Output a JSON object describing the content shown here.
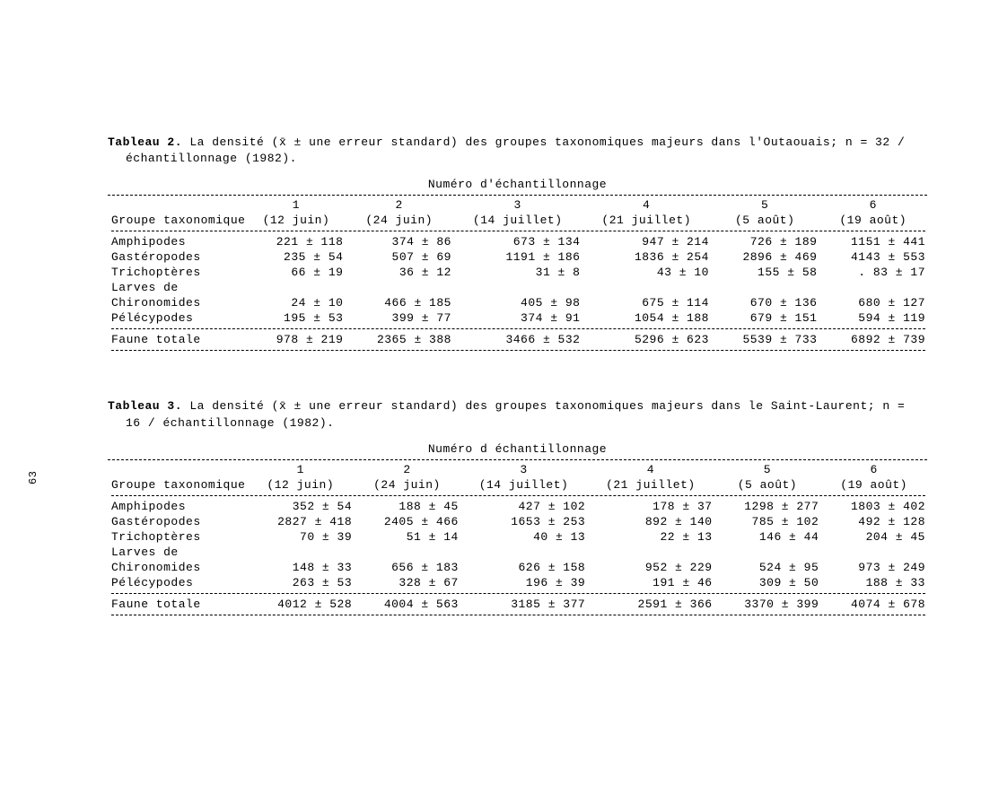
{
  "page_number": "63",
  "tables": [
    {
      "caption_prefix": "Tableau 2.",
      "caption_body": "La densité (x̄ ± une erreur standard) des groupes taxonomiques majeurs dans l'Outaouais; n = 32 / échantillonnage (1982).",
      "section_header": "Numéro d'échantillonnage",
      "col_numbers": [
        "",
        "1",
        "2",
        "3",
        "4",
        "5",
        "6"
      ],
      "col_dates": [
        "Groupe taxonomique",
        "(12 juin)",
        "(24 juin)",
        "(14 juillet)",
        "(21 juillet)",
        "(5 août)",
        "(19 août)"
      ],
      "rows": [
        {
          "label": "Amphipodes",
          "cells": [
            "221 ± 118",
            "374 ± 86",
            "673 ± 134",
            "947 ± 214",
            "726 ± 189",
            "1151 ± 441"
          ]
        },
        {
          "label": "Gastéropodes",
          "cells": [
            "235 ± 54",
            "507 ± 69",
            "1191 ± 186",
            "1836 ± 254",
            "2896 ± 469",
            "4143 ± 553"
          ]
        },
        {
          "label": "Trichoptères",
          "cells": [
            "66 ± 19",
            "36 ± 12",
            "31 ± 8",
            "43 ± 10",
            "155 ± 58",
            ". 83 ± 17"
          ]
        },
        {
          "label": "Larves de",
          "cells": [
            "",
            "",
            "",
            "",
            "",
            ""
          ]
        },
        {
          "label": "Chironomides",
          "cells": [
            "24 ± 10",
            "466 ± 185",
            "405 ± 98",
            "675 ± 114",
            "670 ± 136",
            "680 ± 127"
          ]
        },
        {
          "label": "Pélécypodes",
          "cells": [
            "195 ± 53",
            "399 ± 77",
            "374 ± 91",
            "1054 ± 188",
            "679 ± 151",
            "594 ± 119"
          ]
        }
      ],
      "total": {
        "label": "Faune totale",
        "cells": [
          "978 ± 219",
          "2365 ± 388",
          "3466 ± 532",
          "5296 ± 623",
          "5539 ± 733",
          "6892 ± 739"
        ]
      }
    },
    {
      "caption_prefix": "Tableau 3.",
      "caption_body": "La densité (x̄ ± une erreur standard) des groupes taxonomiques majeurs dans le Saint-Laurent; n = 16 / échantillonnage (1982).",
      "section_header": "Numéro d échantillonnage",
      "col_numbers": [
        "",
        "1",
        "2",
        "3",
        "4",
        "5",
        "6"
      ],
      "col_dates": [
        "Groupe taxonomique",
        "(12 juin)",
        "(24 juin)",
        "(14 juillet)",
        "(21 juillet)",
        "(5 août)",
        "(19 août)"
      ],
      "rows": [
        {
          "label": "Amphipodes",
          "cells": [
            "352 ± 54",
            "188 ± 45",
            "427 ± 102",
            "178 ± 37",
            "1298 ± 277",
            "1803 ± 402"
          ]
        },
        {
          "label": "Gastéropodes",
          "cells": [
            "2827 ± 418",
            "2405 ± 466",
            "1653 ± 253",
            "892 ± 140",
            "785 ± 102",
            "492 ± 128"
          ]
        },
        {
          "label": "Trichoptères",
          "cells": [
            "70 ± 39",
            "51 ± 14",
            "40 ± 13",
            "22 ± 13",
            "146 ± 44",
            "204 ± 45"
          ]
        },
        {
          "label": "Larves de",
          "cells": [
            "",
            "",
            "",
            "",
            "",
            ""
          ]
        },
        {
          "label": "Chironomides",
          "cells": [
            "148 ± 33",
            "656 ± 183",
            "626 ± 158",
            "952 ± 229",
            "524 ± 95",
            "973 ± 249"
          ]
        },
        {
          "label": "Pélécypodes",
          "cells": [
            "263 ± 53",
            "328 ± 67",
            "196 ± 39",
            "191 ± 46",
            "309 ± 50",
            "188 ± 33"
          ]
        }
      ],
      "total": {
        "label": "Faune totale",
        "cells": [
          "4012 ± 528",
          "4004 ± 563",
          "3185 ± 377",
          "2591 ± 366",
          "3370 ± 399",
          "4074 ± 678"
        ]
      }
    }
  ],
  "style": {
    "font_family": "Courier New, monospace",
    "font_size_pt": 10,
    "text_color": "#000000",
    "background_color": "#ffffff",
    "dash_char": "-"
  }
}
